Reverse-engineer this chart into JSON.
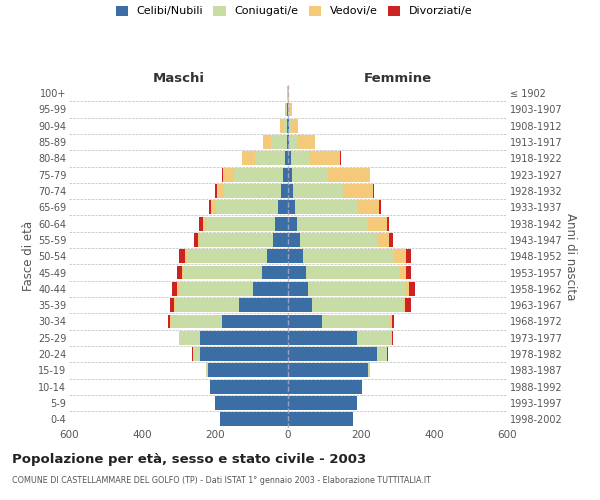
{
  "age_groups": [
    "0-4",
    "5-9",
    "10-14",
    "15-19",
    "20-24",
    "25-29",
    "30-34",
    "35-39",
    "40-44",
    "45-49",
    "50-54",
    "55-59",
    "60-64",
    "65-69",
    "70-74",
    "75-79",
    "80-84",
    "85-89",
    "90-94",
    "95-99",
    "100+"
  ],
  "birth_years_bottom_to_top": [
    "1998-2002",
    "1993-1997",
    "1988-1992",
    "1983-1987",
    "1978-1982",
    "1973-1977",
    "1968-1972",
    "1963-1967",
    "1958-1962",
    "1953-1957",
    "1948-1952",
    "1943-1947",
    "1938-1942",
    "1933-1937",
    "1928-1932",
    "1923-1927",
    "1918-1922",
    "1913-1917",
    "1908-1912",
    "1903-1907",
    "≤ 1902"
  ],
  "maschi_celibi": [
    185,
    200,
    215,
    220,
    240,
    240,
    180,
    135,
    95,
    72,
    58,
    42,
    36,
    28,
    20,
    15,
    8,
    4,
    2,
    2,
    1
  ],
  "maschi_coniugati": [
    0,
    0,
    0,
    5,
    20,
    58,
    140,
    175,
    205,
    215,
    218,
    198,
    188,
    168,
    155,
    133,
    82,
    42,
    13,
    4,
    1
  ],
  "maschi_vedovi": [
    0,
    0,
    0,
    0,
    0,
    0,
    2,
    2,
    3,
    4,
    6,
    6,
    9,
    14,
    20,
    30,
    36,
    22,
    8,
    3,
    1
  ],
  "maschi_divorziati": [
    0,
    0,
    0,
    0,
    2,
    2,
    6,
    11,
    16,
    13,
    16,
    11,
    11,
    6,
    4,
    2,
    1,
    1,
    0,
    0,
    0
  ],
  "femmine_celibi": [
    178,
    188,
    202,
    218,
    245,
    188,
    92,
    66,
    56,
    50,
    42,
    32,
    26,
    20,
    13,
    11,
    7,
    3,
    2,
    1,
    0
  ],
  "femmine_coniugati": [
    0,
    0,
    0,
    6,
    26,
    95,
    188,
    248,
    265,
    258,
    248,
    212,
    192,
    168,
    138,
    98,
    54,
    22,
    6,
    2,
    0
  ],
  "femmine_vedovi": [
    0,
    0,
    0,
    0,
    0,
    2,
    4,
    6,
    10,
    16,
    32,
    32,
    52,
    62,
    82,
    115,
    82,
    48,
    19,
    8,
    2
  ],
  "femmine_divorziati": [
    0,
    0,
    0,
    0,
    2,
    4,
    6,
    16,
    18,
    13,
    16,
    11,
    8,
    5,
    3,
    2,
    1,
    0,
    0,
    0,
    0
  ],
  "colors": {
    "celibi": "#3A6EA5",
    "coniugati": "#C8DCA6",
    "vedovi": "#F5C97A",
    "divorziati": "#CC2222"
  },
  "title": "Popolazione per età, sesso e stato civile - 2003",
  "subtitle": "COMUNE DI CASTELLAMMARE DEL GOLFO (TP) - Dati ISTAT 1° gennaio 2003 - Elaborazione TUTTITALIA.IT",
  "ylabel_left": "Fasce di età",
  "ylabel_right": "Anni di nascita",
  "label_maschi": "Maschi",
  "label_femmine": "Femmine",
  "xlim": 600,
  "bg_color": "#FFFFFF",
  "grid_color": "#BBBBBB",
  "legend_labels": [
    "Celibi/Nubili",
    "Coniugati/e",
    "Vedovi/e",
    "Divorziati/e"
  ]
}
